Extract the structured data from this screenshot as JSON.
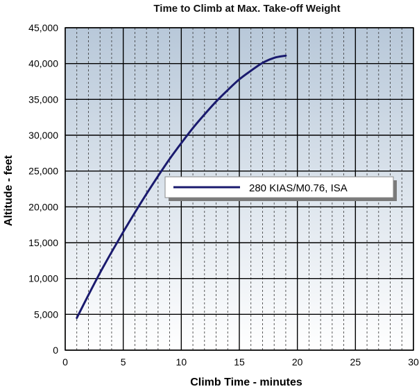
{
  "chart_data": {
    "type": "line",
    "title": "Time to Climb at Max. Take-off Weight",
    "xlabel": "Climb Time - minutes",
    "ylabel": "Altitude - feet",
    "xlim": [
      0,
      30
    ],
    "ylim": [
      0,
      45000
    ],
    "x_ticks": [
      0,
      5,
      10,
      15,
      20,
      25,
      30
    ],
    "y_ticks": [
      0,
      5000,
      10000,
      15000,
      20000,
      25000,
      30000,
      35000,
      40000,
      45000
    ],
    "x_tick_labels": [
      "0",
      "5",
      "10",
      "15",
      "20",
      "25",
      "30"
    ],
    "y_tick_labels": [
      "0",
      "5,000",
      "10,000",
      "15,000",
      "20,000",
      "25,000",
      "30,000",
      "35,000",
      "40,000",
      "45,000"
    ],
    "grid": true,
    "minor_grid_x_step": 1,
    "legend_position": "right-center",
    "colors": {
      "line": "#1a1a6e",
      "plot_bg_top": "#b8c8d9",
      "plot_bg_bottom": "#ffffff",
      "grid_major": "#000000",
      "grid_minor": "#333333"
    },
    "series": [
      {
        "name": "280 KIAS/M0.76, ISA",
        "x": [
          1,
          2,
          3,
          4,
          5,
          6,
          7,
          8,
          9,
          10,
          11,
          12,
          13,
          14,
          15,
          16,
          17,
          18,
          19
        ],
        "y": [
          4500,
          7700,
          10800,
          13700,
          16500,
          19200,
          21800,
          24300,
          26700,
          28900,
          31000,
          32900,
          34700,
          36300,
          37800,
          39000,
          40100,
          40800,
          41100
        ]
      }
    ]
  }
}
